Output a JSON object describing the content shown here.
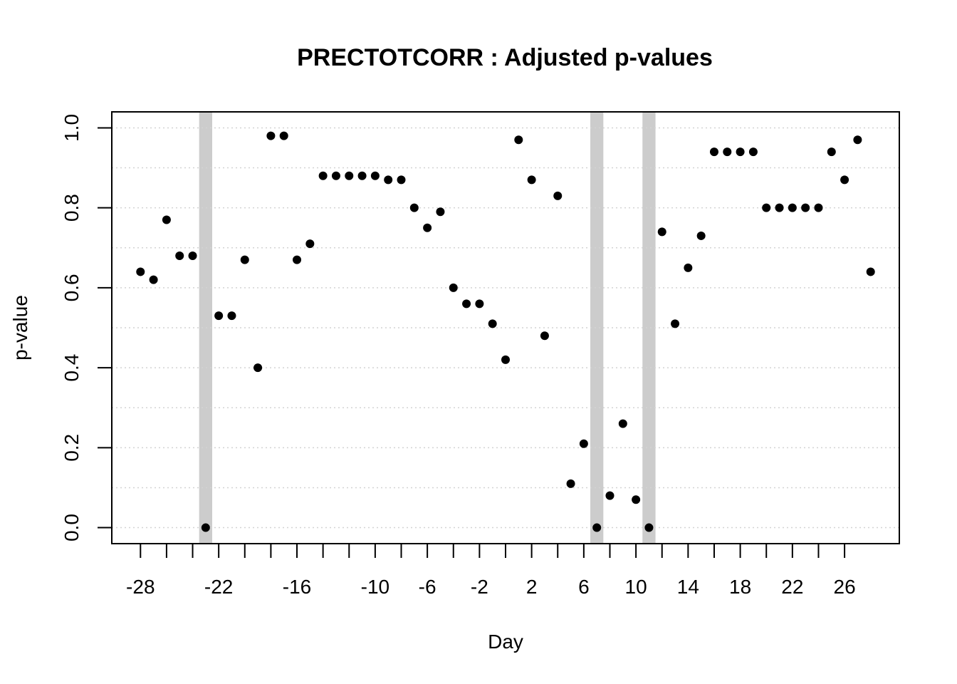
{
  "chart_data": {
    "type": "scatter",
    "title": "PRECTOTCORR : Adjusted p-values",
    "xlabel": "Day",
    "ylabel": "p-value",
    "xlim": [
      -30.2,
      30.2
    ],
    "ylim": [
      -0.04,
      1.04
    ],
    "x_ticks": [
      -28,
      -22,
      -16,
      -10,
      -6,
      -2,
      2,
      6,
      10,
      14,
      18,
      22,
      26
    ],
    "x_minor_ticks": [
      -26,
      -24,
      -20,
      -18,
      -14,
      -12,
      -8,
      -4,
      0,
      4,
      8,
      12,
      16,
      20,
      24
    ],
    "y_ticks": [
      0.0,
      0.2,
      0.4,
      0.6,
      0.8,
      1.0
    ],
    "y_tick_labels": [
      "0.0",
      "0.2",
      "0.4",
      "0.6",
      "0.8",
      "1.0"
    ],
    "grid_y": [
      0.0,
      0.1,
      0.2,
      0.3,
      0.4,
      0.5,
      0.6,
      0.7,
      0.8,
      0.9,
      1.0
    ],
    "grid": "horizontal dotted",
    "highlight_days": [
      -23,
      7,
      11
    ],
    "colors": {
      "points": "#000000",
      "highlight": "#cccccc",
      "grid": "#d3d3d3"
    },
    "x": [
      -28,
      -27,
      -26,
      -25,
      -24,
      -23,
      -22,
      -21,
      -20,
      -19,
      -18,
      -17,
      -16,
      -15,
      -14,
      -13,
      -12,
      -11,
      -10,
      -9,
      -8,
      -7,
      -6,
      -5,
      -4,
      -3,
      -2,
      -1,
      0,
      1,
      2,
      3,
      4,
      5,
      6,
      7,
      8,
      9,
      10,
      11,
      12,
      13,
      14,
      15,
      16,
      17,
      18,
      19,
      20,
      21,
      22,
      23,
      24,
      25,
      26,
      27,
      28
    ],
    "y": [
      0.64,
      0.62,
      0.77,
      0.68,
      0.68,
      0.0,
      0.53,
      0.53,
      0.67,
      0.4,
      0.98,
      0.98,
      0.67,
      0.71,
      0.88,
      0.88,
      0.88,
      0.88,
      0.88,
      0.87,
      0.87,
      0.8,
      0.75,
      0.79,
      0.6,
      0.56,
      0.56,
      0.51,
      0.42,
      0.97,
      0.87,
      0.48,
      0.83,
      0.11,
      0.21,
      0.0,
      0.08,
      0.26,
      0.07,
      0.0,
      0.74,
      0.51,
      0.65,
      0.73,
      0.94,
      0.94,
      0.94,
      0.94,
      0.8,
      0.8,
      0.8,
      0.8,
      0.8,
      0.94,
      0.87,
      0.97,
      0.64
    ]
  }
}
